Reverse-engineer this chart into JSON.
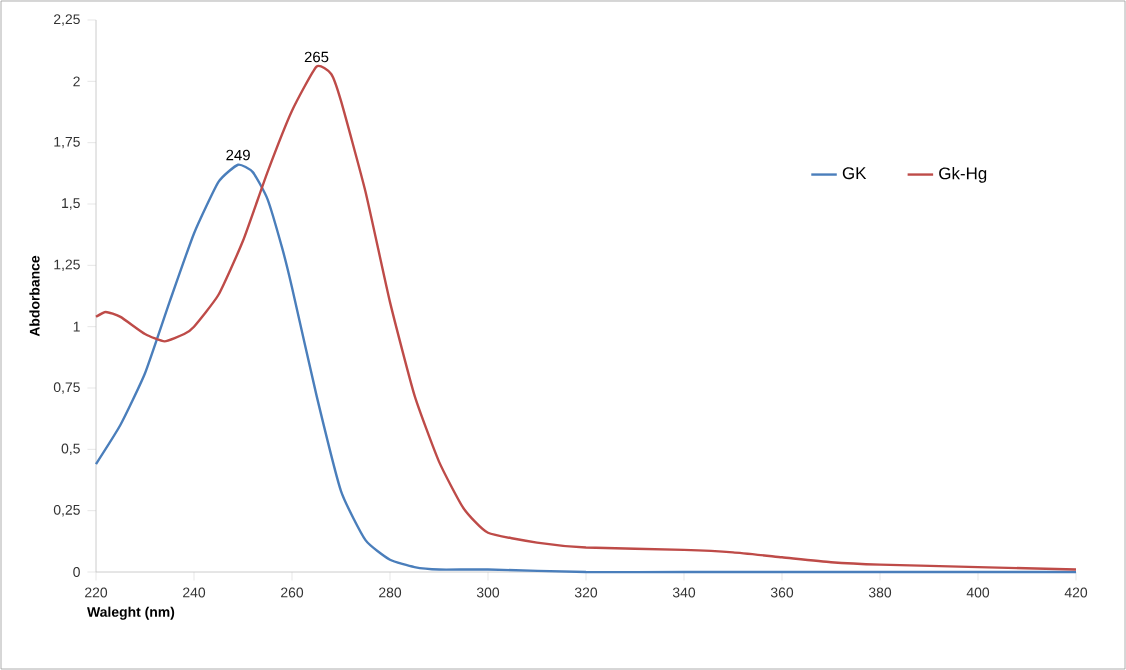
{
  "chart_data": {
    "type": "line",
    "xlabel": "Waleght (nm)",
    "ylabel": "Abdorbance",
    "xlim": [
      220,
      420
    ],
    "xticks": [
      220,
      240,
      260,
      280,
      300,
      320,
      340,
      360,
      380,
      400,
      420
    ],
    "ylim": [
      0,
      2.25
    ],
    "yticks": [
      0,
      {
        "value": 0.25,
        "label": "0,25"
      },
      {
        "value": 0.5,
        "label": "0,5"
      },
      {
        "value": 0.75,
        "label": "0,75"
      },
      1,
      {
        "value": 1.25,
        "label": "1,25"
      },
      {
        "value": 1.5,
        "label": "1,5"
      },
      {
        "value": 1.75,
        "label": "1,75"
      },
      2,
      {
        "value": 2.25,
        "label": "2,25"
      }
    ],
    "grid": false,
    "legend": "right",
    "marker": "none",
    "line_style": "solid",
    "series": [
      {
        "name": "GK",
        "color": "#4a7ebb",
        "x": [
          220,
          225,
          230,
          235,
          240,
          245,
          249,
          252,
          255,
          258,
          260,
          265,
          270,
          275,
          280,
          285,
          290,
          300,
          320,
          340,
          360,
          380,
          400,
          420
        ],
        "values": [
          0.44,
          0.6,
          0.81,
          1.1,
          1.38,
          1.59,
          1.66,
          1.63,
          1.52,
          1.32,
          1.16,
          0.72,
          0.33,
          0.13,
          0.05,
          0.02,
          0.01,
          0.01,
          0,
          0,
          0,
          0,
          0,
          0
        ]
      },
      {
        "name": "Gk-Hg",
        "color": "#be4b48",
        "x": [
          220,
          222,
          225,
          230,
          234,
          238,
          240,
          245,
          250,
          255,
          260,
          265,
          268,
          270,
          275,
          280,
          285,
          290,
          295,
          300,
          310,
          320,
          340,
          350,
          360,
          370,
          380,
          400,
          420
        ],
        "values": [
          1.04,
          1.06,
          1.04,
          0.97,
          0.94,
          0.97,
          1.0,
          1.13,
          1.35,
          1.63,
          1.88,
          2.06,
          2.03,
          1.92,
          1.55,
          1.1,
          0.72,
          0.45,
          0.26,
          0.16,
          0.12,
          0.1,
          0.09,
          0.08,
          0.06,
          0.04,
          0.03,
          0.02,
          0.01
        ]
      }
    ],
    "annotations": [
      {
        "text": "249",
        "x": 249,
        "y": 1.66
      },
      {
        "text": "265",
        "x": 265,
        "y": 2.06
      }
    ]
  }
}
